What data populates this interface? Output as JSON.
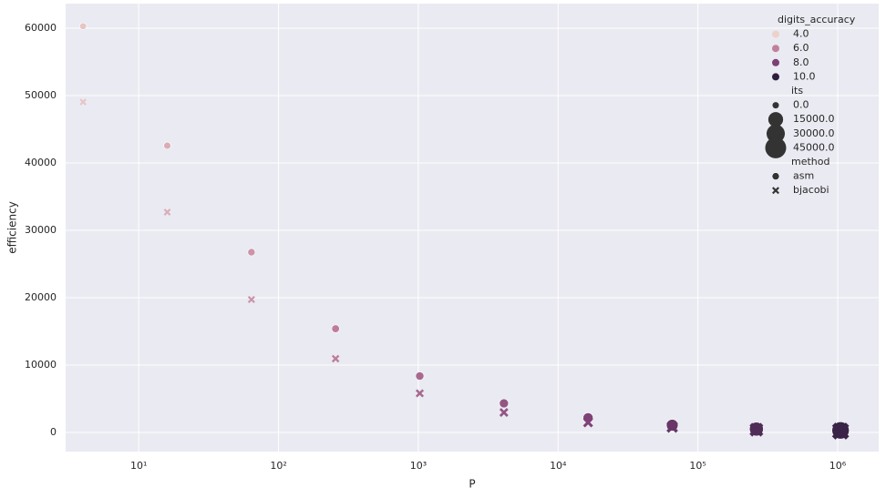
{
  "chart_data": {
    "type": "scatter",
    "x_label": "P",
    "y_label": "efficiency",
    "xscale": "log",
    "grid": true,
    "xlim": [
      3.0,
      1965000
    ],
    "ylim": [
      -2840,
      63650
    ],
    "xticks": [
      {
        "value": 10,
        "label": "10¹"
      },
      {
        "value": 100,
        "label": "10²"
      },
      {
        "value": 1000,
        "label": "10³"
      },
      {
        "value": 10000,
        "label": "10⁴"
      },
      {
        "value": 100000,
        "label": "10⁵"
      },
      {
        "value": 1000000,
        "label": "10⁶"
      }
    ],
    "yticks": [
      0,
      10000,
      20000,
      30000,
      40000,
      50000,
      60000
    ],
    "legend_position": "upper right",
    "hue": {
      "title": "digits_accuracy",
      "levels": [
        {
          "value": 4,
          "label": "4.0",
          "color": "#edd1cb"
        },
        {
          "value": 6,
          "label": "6.0",
          "color": "#c0809c"
        },
        {
          "value": 8,
          "label": "8.0",
          "color": "#7b3f75"
        },
        {
          "value": 10,
          "label": "10.0",
          "color": "#2d1e3e"
        }
      ]
    },
    "size": {
      "title": "its",
      "levels": [
        {
          "value": 0,
          "label": "0.0"
        },
        {
          "value": 15000,
          "label": "15000.0"
        },
        {
          "value": 30000,
          "label": "30000.0"
        },
        {
          "value": 45000,
          "label": "45000.0"
        }
      ]
    },
    "style": {
      "title": "method"
    },
    "series": [
      {
        "name": "asm",
        "marker": "circle",
        "x": [
          4,
          16,
          64,
          256,
          1024,
          4096,
          16384,
          65536,
          262144,
          1048576
        ],
        "values": [
          60300,
          42570,
          26760,
          15400,
          8380,
          4320,
          2160,
          1080,
          500,
          300
        ],
        "digits_accuracy": [
          4.3,
          4.9,
          5.5,
          6.1,
          6.7,
          7.3,
          7.9,
          8.5,
          9.1,
          9.7
        ],
        "its": [
          50,
          100,
          200,
          400,
          800,
          1500,
          3000,
          6000,
          12000,
          25000
        ]
      },
      {
        "name": "bjacobi",
        "marker": "x",
        "x": [
          4,
          16,
          64,
          256,
          1024,
          4096,
          16384,
          65536,
          262144,
          1048576
        ],
        "values": [
          49050,
          32700,
          19730,
          10950,
          5810,
          2970,
          1490,
          800,
          400,
          200
        ],
        "digits_accuracy": [
          4.3,
          4.9,
          5.5,
          6.1,
          6.7,
          7.3,
          7.9,
          8.5,
          9.1,
          9.7
        ],
        "its": [
          50,
          100,
          200,
          400,
          800,
          1500,
          3000,
          6000,
          12000,
          25000
        ]
      }
    ]
  }
}
